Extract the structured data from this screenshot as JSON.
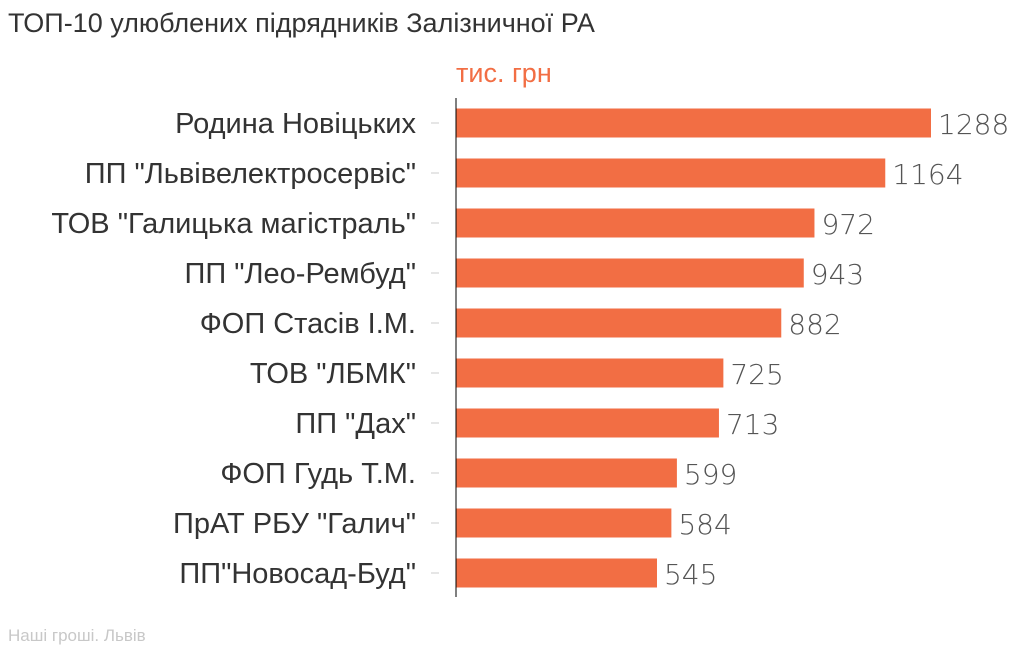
{
  "title": "ТОП-10 улюблених підрядників Залізничної РА",
  "unit_label": "тис. грн",
  "source": "Наші гроші. Львів",
  "colors": {
    "bar": "#f26e44",
    "unit": "#f26e44",
    "axis": "#000000",
    "tick": "#cccccc"
  },
  "chart_data": {
    "type": "bar",
    "orientation": "horizontal",
    "title": "ТОП-10 улюблених підрядників Залізничної РА",
    "ylabel": "тис. грн",
    "categories": [
      "Родина Новіцьких",
      "ПП \"Львівелектросервіс\"",
      "ТОВ \"Галицька магістраль\"",
      "ПП \"Лео-Рембуд\"",
      "ФОП Стасів І.М.",
      "ТОВ \"ЛБМК\"",
      "ПП \"Дах\"",
      "ФОП Гудь Т.М.",
      "ПрАТ РБУ \"Галич\"",
      "ПП\"Новосад-Буд\""
    ],
    "values": [
      1288,
      1164,
      972,
      943,
      882,
      725,
      713,
      599,
      584,
      545
    ],
    "xlim": [
      0,
      1288
    ],
    "grid": false,
    "legend": "none"
  }
}
